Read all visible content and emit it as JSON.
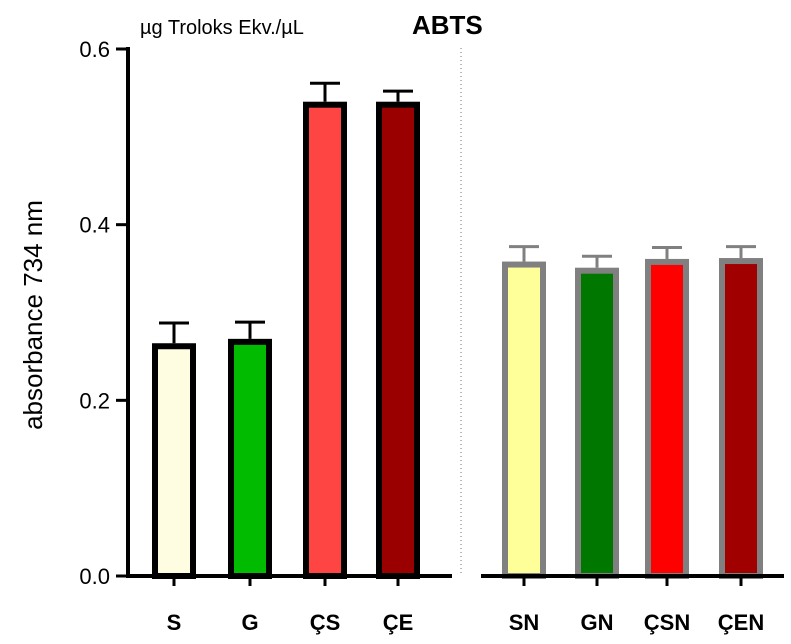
{
  "chart_data": {
    "type": "bar",
    "title": "ABTS",
    "unit_label": "µg Troloks Ekv./µL",
    "ylabel": "absorbance 734 nm",
    "xlabel": "",
    "ylim": [
      0,
      0.6
    ],
    "yticks": [
      0.0,
      0.2,
      0.4,
      0.6
    ],
    "ytick_labels": [
      "0.0",
      "0.2",
      "0.4",
      "0.6"
    ],
    "grid": false,
    "separator": "dotted vertical line between ÇE and SN",
    "categories": [
      "S",
      "G",
      "ÇS",
      "ÇE",
      "SN",
      "GN",
      "ÇSN",
      "ÇEN"
    ],
    "values": [
      0.265,
      0.27,
      0.54,
      0.54,
      0.358,
      0.351,
      0.361,
      0.362
    ],
    "errors": [
      0.023,
      0.019,
      0.021,
      0.012,
      0.017,
      0.013,
      0.013,
      0.013
    ],
    "fill_colors": [
      "#fffde1",
      "#00bb00",
      "#ff4444",
      "#9b0000",
      "#ffff99",
      "#007800",
      "#ff0000",
      "#a00000"
    ],
    "edge_colors": [
      "#000000",
      "#000000",
      "#000000",
      "#000000",
      "#808080",
      "#808080",
      "#808080",
      "#808080"
    ]
  }
}
